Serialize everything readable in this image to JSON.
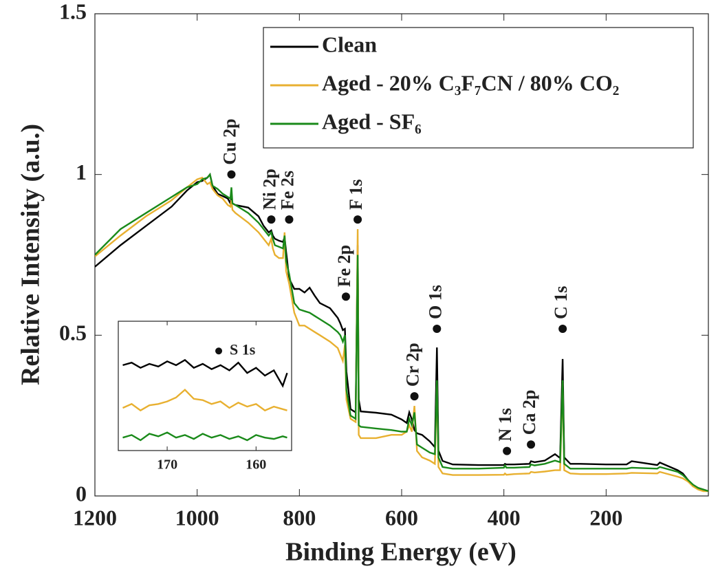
{
  "chart_data": [
    {
      "type": "line",
      "xlabel": "Binding Energy (eV)",
      "ylabel": "Relative Intensity (a.u.)",
      "xlim": [
        1200,
        0
      ],
      "ylim": [
        0,
        1.5
      ],
      "xticks": [
        1200,
        1000,
        800,
        600,
        400,
        200
      ],
      "yticks": [
        0,
        0.5,
        1,
        1.5
      ],
      "grid": false,
      "legend": "upper right",
      "x": [
        1200,
        1150,
        1100,
        1050,
        1020,
        1000,
        990,
        980,
        975,
        970,
        960,
        950,
        940,
        935,
        933,
        931,
        925,
        900,
        880,
        870,
        860,
        855,
        852,
        848,
        840,
        832,
        829,
        826,
        820,
        810,
        800,
        790,
        780,
        770,
        760,
        740,
        725,
        720,
        715,
        711,
        708,
        700,
        690,
        686,
        684,
        680,
        650,
        620,
        600,
        590,
        585,
        580,
        575,
        570,
        560,
        545,
        535,
        531,
        528,
        520,
        500,
        450,
        400,
        398,
        395,
        380,
        350,
        347,
        340,
        320,
        300,
        290,
        285,
        282,
        270,
        250,
        200,
        160,
        150,
        100,
        95,
        60,
        50,
        40,
        30,
        20,
        10,
        0
      ],
      "series": [
        {
          "name": "Clean",
          "color": "#000000",
          "values": [
            0.713,
            0.78,
            0.84,
            0.9,
            0.95,
            0.976,
            0.98,
            0.99,
            1.0,
            0.965,
            0.94,
            0.933,
            0.925,
            0.91,
            0.93,
            0.91,
            0.905,
            0.897,
            0.87,
            0.84,
            0.82,
            0.826,
            0.81,
            0.8,
            0.794,
            0.79,
            0.805,
            0.76,
            0.676,
            0.644,
            0.644,
            0.633,
            0.648,
            0.623,
            0.6,
            0.584,
            0.554,
            0.537,
            0.516,
            0.52,
            0.387,
            0.27,
            0.26,
            0.78,
            0.3,
            0.263,
            0.259,
            0.253,
            0.238,
            0.227,
            0.26,
            0.238,
            0.205,
            0.195,
            0.19,
            0.17,
            0.152,
            0.462,
            0.141,
            0.109,
            0.098,
            0.096,
            0.096,
            0.1,
            0.098,
            0.098,
            0.1,
            0.108,
            0.105,
            0.11,
            0.13,
            0.118,
            0.426,
            0.12,
            0.1,
            0.1,
            0.098,
            0.098,
            0.108,
            0.096,
            0.104,
            0.08,
            0.07,
            0.05,
            0.03,
            0.025,
            0.02,
            0.015
          ]
        },
        {
          "name": "Aged - 20% C₃F₇CN / 80% CO₂",
          "color": "#e8b030",
          "values": [
            0.745,
            0.81,
            0.87,
            0.92,
            0.96,
            0.985,
            0.99,
            0.97,
            0.975,
            0.955,
            0.935,
            0.925,
            0.905,
            0.9,
            0.92,
            0.89,
            0.88,
            0.85,
            0.82,
            0.8,
            0.78,
            0.8,
            0.77,
            0.75,
            0.74,
            0.74,
            0.82,
            0.7,
            0.66,
            0.57,
            0.53,
            0.53,
            0.52,
            0.51,
            0.5,
            0.48,
            0.46,
            0.44,
            0.42,
            0.47,
            0.3,
            0.24,
            0.23,
            0.83,
            0.19,
            0.18,
            0.18,
            0.19,
            0.19,
            0.2,
            0.22,
            0.2,
            0.28,
            0.14,
            0.12,
            0.11,
            0.1,
            0.35,
            0.09,
            0.07,
            0.065,
            0.065,
            0.066,
            0.07,
            0.066,
            0.068,
            0.07,
            0.075,
            0.073,
            0.076,
            0.08,
            0.08,
            0.35,
            0.08,
            0.07,
            0.068,
            0.068,
            0.07,
            0.072,
            0.07,
            0.075,
            0.06,
            0.055,
            0.045,
            0.03,
            0.02,
            0.015,
            0.015
          ]
        },
        {
          "name": "Aged - SF₆",
          "color": "#1a8a1a",
          "values": [
            0.75,
            0.83,
            0.88,
            0.93,
            0.96,
            0.97,
            0.985,
            0.99,
            1.0,
            0.965,
            0.955,
            0.94,
            0.93,
            0.925,
            0.96,
            0.91,
            0.905,
            0.88,
            0.85,
            0.83,
            0.81,
            0.82,
            0.8,
            0.78,
            0.775,
            0.77,
            0.81,
            0.73,
            0.69,
            0.6,
            0.58,
            0.575,
            0.57,
            0.56,
            0.55,
            0.53,
            0.51,
            0.5,
            0.48,
            0.5,
            0.33,
            0.25,
            0.24,
            0.75,
            0.22,
            0.215,
            0.21,
            0.205,
            0.2,
            0.2,
            0.24,
            0.22,
            0.26,
            0.16,
            0.15,
            0.135,
            0.13,
            0.36,
            0.12,
            0.09,
            0.085,
            0.085,
            0.088,
            0.095,
            0.088,
            0.088,
            0.09,
            0.098,
            0.095,
            0.1,
            0.11,
            0.105,
            0.36,
            0.1,
            0.085,
            0.085,
            0.085,
            0.085,
            0.088,
            0.085,
            0.09,
            0.075,
            0.065,
            0.05,
            0.035,
            0.025,
            0.02,
            0.015
          ]
        }
      ],
      "annotations": [
        {
          "label": "Cu 2p",
          "x": 933,
          "y": 1.0
        },
        {
          "label": "Ni 2p",
          "x": 855,
          "y": 0.86
        },
        {
          "label": "Fe 2s",
          "x": 820,
          "y": 0.86
        },
        {
          "label": "F 1s",
          "x": 686,
          "y": 0.86
        },
        {
          "label": "Fe 2p",
          "x": 709,
          "y": 0.62
        },
        {
          "label": "Cr 2p",
          "x": 575,
          "y": 0.31
        },
        {
          "label": "O 1s",
          "x": 531,
          "y": 0.52
        },
        {
          "label": "N 1s",
          "x": 394,
          "y": 0.14
        },
        {
          "label": "Ca 2p",
          "x": 347,
          "y": 0.16
        },
        {
          "label": "C 1s",
          "x": 285,
          "y": 0.52
        }
      ]
    },
    {
      "type": "line",
      "xlim": [
        175.5,
        156
      ],
      "ylim": [
        0,
        1
      ],
      "xticks": [
        170,
        160
      ],
      "x": [
        175,
        174,
        173,
        172,
        171,
        170,
        169,
        168,
        167,
        166,
        165,
        164,
        163,
        162,
        161,
        160,
        159,
        158,
        157,
        156.5
      ],
      "series": [
        {
          "color": "#000000",
          "values": [
            0.66,
            0.68,
            0.64,
            0.67,
            0.65,
            0.69,
            0.66,
            0.7,
            0.64,
            0.67,
            0.63,
            0.66,
            0.62,
            0.68,
            0.6,
            0.64,
            0.58,
            0.62,
            0.5,
            0.6
          ]
        },
        {
          "color": "#e8b030",
          "values": [
            0.33,
            0.36,
            0.31,
            0.35,
            0.36,
            0.38,
            0.41,
            0.47,
            0.4,
            0.39,
            0.36,
            0.38,
            0.33,
            0.37,
            0.34,
            0.36,
            0.31,
            0.34,
            0.32,
            0.31
          ]
        },
        {
          "color": "#1a8a1a",
          "values": [
            0.1,
            0.12,
            0.08,
            0.13,
            0.11,
            0.14,
            0.1,
            0.12,
            0.09,
            0.13,
            0.1,
            0.12,
            0.09,
            0.11,
            0.08,
            0.12,
            0.1,
            0.09,
            0.11,
            0.1
          ]
        }
      ],
      "annotations": [
        {
          "label": "S 1s",
          "x": 164.2,
          "y": 0.77
        }
      ]
    }
  ]
}
